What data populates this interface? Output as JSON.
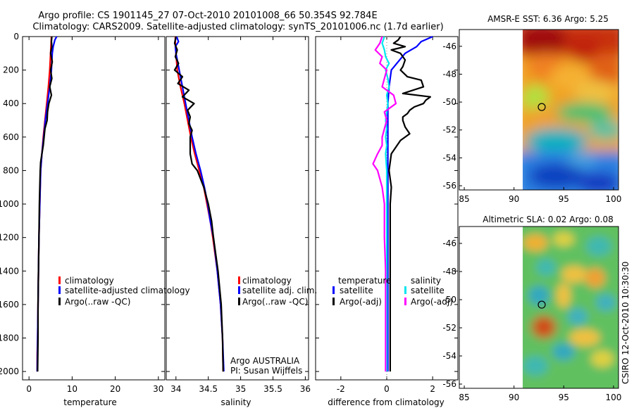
{
  "figure": {
    "title_line1": "Argo profile: CS 1901145_27 07-Oct-2010 20101008_66 50.354S 92.784E",
    "title_line2": "Climatology: CARS2009. Satellite-adjusted climatology: synTS_20101006.nc (1.7d earlier)",
    "side_label": "CSIRO 12-Oct-2010 10:30:30",
    "float_info_1": "Argo AUSTRALIA",
    "float_info_2": "PI: Susan Wijffels"
  },
  "colors": {
    "climatology": "#ff0000",
    "satellite": "#0000ff",
    "argo": "#000000",
    "salinity_satellite": "#00e5ee",
    "salinity_argo": "#ff00ff",
    "zero_line": "#888888"
  },
  "chart_data": [
    {
      "id": "temperature",
      "type": "line",
      "xlabel": "temperature",
      "ylabel": "",
      "xlim": [
        -1.5,
        31.5
      ],
      "ylim": [
        2050,
        0
      ],
      "x_ticks": [
        "0",
        "10",
        "20",
        "30"
      ],
      "y_ticks": [
        "0",
        "200",
        "400",
        "600",
        "800",
        "1000",
        "1200",
        "1400",
        "1600",
        "1800",
        "2000"
      ],
      "legend": [
        "climatology",
        "satellite-adjusted climatology",
        "Argo(..raw -QC)"
      ],
      "legend_position": "middle",
      "series": [
        {
          "name": "climatology",
          "color": "#ff0000",
          "depth": [
            0,
            100,
            200,
            300,
            400,
            500,
            600,
            700,
            800,
            1000,
            1200,
            1400,
            1600,
            1800,
            1900,
            2000
          ],
          "values": [
            5.2,
            5.0,
            4.8,
            4.5,
            4.1,
            3.7,
            3.3,
            3.0,
            2.7,
            2.5,
            2.3,
            2.2,
            2.1,
            2.0,
            1.9,
            1.9
          ]
        },
        {
          "name": "satellite-adjusted climatology",
          "color": "#0000ff",
          "depth": [
            0,
            20,
            60,
            100,
            200,
            300,
            400,
            500,
            600,
            700,
            800,
            1000,
            1200,
            1400,
            1600,
            1800,
            2000
          ],
          "values": [
            6.4,
            6.0,
            5.6,
            5.4,
            5.2,
            4.8,
            4.3,
            3.8,
            3.4,
            3.0,
            2.7,
            2.5,
            2.3,
            2.2,
            2.1,
            2.0,
            1.9
          ]
        },
        {
          "name": "Argo(..raw -QC)",
          "color": "#000000",
          "depth": [
            0,
            30,
            60,
            100,
            150,
            200,
            250,
            300,
            350,
            400,
            450,
            500,
            550,
            600,
            650,
            700,
            750,
            800,
            900,
            1000,
            1200,
            1400,
            1600,
            1800,
            2000
          ],
          "values": [
            5.3,
            5.2,
            5.3,
            5.0,
            5.4,
            5.0,
            5.3,
            4.8,
            5.2,
            4.6,
            4.3,
            4.2,
            3.7,
            3.5,
            3.3,
            3.0,
            2.7,
            2.6,
            2.5,
            2.4,
            2.3,
            2.2,
            2.1,
            2.1,
            2.0
          ]
        }
      ]
    },
    {
      "id": "salinity",
      "type": "line",
      "xlabel": "salinity",
      "ylabel": "",
      "xlim": [
        33.85,
        36.05
      ],
      "ylim": [
        2050,
        0
      ],
      "x_ticks": [
        "34",
        "34.5",
        "35",
        "35.5",
        "36"
      ],
      "legend": [
        "climatology",
        "satellite adj. clim.",
        "Argo(..raw -QC)"
      ],
      "legend_position": "middle",
      "series": [
        {
          "name": "climatology",
          "color": "#ff0000",
          "depth": [
            0,
            50,
            100,
            200,
            300,
            400,
            500,
            600,
            700,
            800,
            900,
            1000,
            1100,
            1200,
            1400,
            1600,
            1800,
            2000
          ],
          "values": [
            33.99,
            33.99,
            34.0,
            34.02,
            34.07,
            34.13,
            34.18,
            34.23,
            34.29,
            34.36,
            34.43,
            34.48,
            34.53,
            34.57,
            34.64,
            34.69,
            34.72,
            34.73
          ]
        },
        {
          "name": "satellite adj. clim.",
          "color": "#0000ff",
          "depth": [
            0,
            30,
            60,
            100,
            200,
            300,
            400,
            500,
            600,
            700,
            800,
            900,
            1000,
            1100,
            1200,
            1400,
            1600,
            1800,
            2000
          ],
          "values": [
            34.01,
            34.04,
            33.99,
            34.0,
            34.05,
            34.1,
            34.15,
            34.2,
            34.25,
            34.31,
            34.38,
            34.44,
            34.49,
            34.53,
            34.58,
            34.64,
            34.69,
            34.72,
            34.74
          ]
        },
        {
          "name": "Argo(..raw -QC)",
          "color": "#000000",
          "depth": [
            0,
            40,
            80,
            120,
            160,
            200,
            240,
            280,
            320,
            360,
            400,
            440,
            480,
            520,
            560,
            600,
            650,
            700,
            760,
            800,
            900,
            1000,
            1100,
            1200,
            1400,
            1600,
            1800,
            2000
          ],
          "values": [
            34.0,
            33.98,
            34.02,
            33.99,
            34.04,
            33.98,
            34.1,
            34.03,
            34.2,
            34.1,
            34.28,
            34.18,
            34.22,
            34.2,
            34.25,
            34.22,
            34.22,
            34.22,
            34.25,
            34.33,
            34.43,
            34.5,
            34.55,
            34.58,
            34.65,
            34.7,
            34.72,
            34.73
          ]
        }
      ]
    },
    {
      "id": "difference",
      "type": "line",
      "xlabel": "difference from climatology",
      "ylabel": "",
      "xlim": [
        -3.1,
        3.1
      ],
      "ylim": [
        2050,
        0
      ],
      "x_ticks": [
        "-2",
        "0",
        "2"
      ],
      "legend_groups": [
        {
          "title": "temperature",
          "entries": [
            "satellite",
            "Argo(-adj)"
          ]
        },
        {
          "title": "salinity",
          "entries": [
            "satellite",
            "Argo(-adj)"
          ]
        }
      ],
      "legend_position": "middle",
      "series": [
        {
          "name": "temperature satellite",
          "color": "#0000ff",
          "depth": [
            0,
            30,
            60,
            100,
            150,
            200,
            300,
            400,
            500,
            600,
            800,
            1000,
            1200,
            1400,
            1600,
            1800,
            2000
          ],
          "values": [
            2.0,
            1.5,
            1.3,
            0.8,
            0.5,
            0.2,
            0.1,
            0.05,
            0.05,
            0.05,
            0.05,
            0.05,
            0.05,
            0.05,
            0.05,
            0.05,
            0.05
          ]
        },
        {
          "name": "temperature Argo(-adj)",
          "color": "#000000",
          "depth": [
            0,
            20,
            40,
            60,
            80,
            100,
            140,
            180,
            200,
            240,
            260,
            300,
            340,
            360,
            380,
            400,
            420,
            440,
            460,
            480,
            500,
            540,
            580,
            620,
            660,
            700,
            800,
            900,
            1000,
            1200,
            1400,
            1600,
            1800,
            2000
          ],
          "values": [
            0.6,
            0.5,
            0.3,
            0.8,
            0.2,
            0.6,
            0.8,
            0.7,
            0.6,
            0.9,
            1.5,
            1.6,
            0.7,
            1.9,
            1.7,
            1.6,
            1.2,
            1.0,
            0.9,
            0.7,
            0.7,
            0.8,
            1.0,
            0.6,
            0.4,
            0.2,
            0.1,
            0.2,
            0.15,
            0.15,
            0.15,
            0.15,
            0.15,
            0.15
          ]
        },
        {
          "name": "salinity satellite",
          "color": "#00e5ee",
          "depth": [
            0,
            40,
            80,
            120,
            160,
            200,
            250,
            300,
            350,
            400,
            450,
            500,
            550,
            600,
            650,
            700,
            800,
            900,
            1000,
            1200,
            1400,
            1600,
            1800,
            2000
          ],
          "values": [
            -0.1,
            -0.2,
            -0.1,
            -0.05,
            0.1,
            -0.05,
            0.05,
            0.1,
            0.0,
            0.05,
            0.0,
            -0.05,
            0.0,
            -0.05,
            0.0,
            -0.05,
            0.0,
            0.0,
            0.0,
            0.0,
            0.0,
            0.0,
            0.0,
            0.0
          ]
        },
        {
          "name": "salinity Argo(-adj)",
          "color": "#ff00ff",
          "depth": [
            0,
            40,
            80,
            120,
            160,
            200,
            250,
            300,
            350,
            400,
            450,
            500,
            550,
            600,
            650,
            700,
            760,
            800,
            900,
            1000,
            1200,
            1400,
            1600,
            1800,
            2000
          ],
          "values": [
            -0.2,
            -0.3,
            -0.5,
            -0.2,
            -0.3,
            0.0,
            -0.1,
            -0.2,
            0.3,
            0.4,
            -0.1,
            0.0,
            -0.1,
            -0.2,
            -0.2,
            -0.4,
            -0.6,
            -0.4,
            -0.2,
            -0.1,
            -0.1,
            -0.05,
            -0.05,
            -0.05,
            -0.05
          ]
        }
      ]
    },
    {
      "id": "amsre-sst-map",
      "type": "heatmap",
      "title": "AMSR-E SST: 6.36 Argo: 5.25",
      "xlim": [
        84.5,
        100.5
      ],
      "ylim": [
        -56.3,
        -44.8
      ],
      "x_ticks": [
        "85",
        "90",
        "95",
        "100"
      ],
      "y_ticks": [
        "-46",
        "-48",
        "-50",
        "-52",
        "-54",
        "-56"
      ],
      "float_position": {
        "lon": 92.784,
        "lat": -50.354
      },
      "data_extent_lon": [
        90,
        100.5
      ]
    },
    {
      "id": "altimetric-sla-map",
      "type": "heatmap",
      "title": "Altimetric SLA: 0.02 Argo: 0.08",
      "xlim": [
        84.5,
        100.5
      ],
      "ylim": [
        -56.3,
        -44.8
      ],
      "x_ticks": [
        "85",
        "90",
        "95",
        "100"
      ],
      "y_ticks": [
        "-46",
        "-48",
        "-50",
        "-52",
        "-54",
        "-56"
      ],
      "float_position": {
        "lon": 92.784,
        "lat": -50.354
      },
      "data_extent_lon": [
        90,
        100.5
      ]
    }
  ]
}
